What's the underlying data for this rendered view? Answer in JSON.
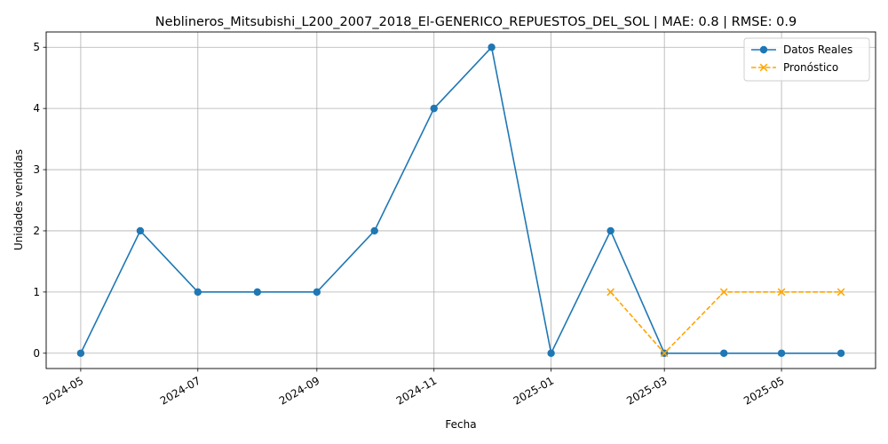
{
  "chart_data": {
    "type": "line",
    "title": "Neblineros_Mitsubishi_L200_2007_2018_El-GENERICO_REPUESTOS_DEL_SOL | MAE: 0.8 | RMSE: 0.9",
    "xlabel": "Fecha",
    "ylabel": "Unidades vendidas",
    "ylim": [
      -0.25,
      5.25
    ],
    "xlim": [
      "2024-04-13",
      "2025-06-19"
    ],
    "grid": true,
    "legend_position": "top-right",
    "x_ticks": [
      "2024-05",
      "2024-07",
      "2024-09",
      "2024-11",
      "2025-01",
      "2025-03",
      "2025-05"
    ],
    "y_ticks": [
      0,
      1,
      2,
      3,
      4,
      5
    ],
    "series": [
      {
        "name": "Datos Reales",
        "color": "#1f77b4",
        "style": "solid",
        "marker": "circle",
        "points": [
          {
            "x": "2024-05-01",
            "y": 0
          },
          {
            "x": "2024-06-01",
            "y": 2
          },
          {
            "x": "2024-07-01",
            "y": 1
          },
          {
            "x": "2024-08-01",
            "y": 1
          },
          {
            "x": "2024-09-01",
            "y": 1
          },
          {
            "x": "2024-10-01",
            "y": 2
          },
          {
            "x": "2024-11-01",
            "y": 4
          },
          {
            "x": "2024-12-01",
            "y": 5
          },
          {
            "x": "2025-01-01",
            "y": 0
          },
          {
            "x": "2025-02-01",
            "y": 2
          },
          {
            "x": "2025-03-01",
            "y": 0
          },
          {
            "x": "2025-04-01",
            "y": 0
          },
          {
            "x": "2025-05-01",
            "y": 0
          },
          {
            "x": "2025-06-01",
            "y": 0
          }
        ]
      },
      {
        "name": "Pronóstico",
        "color": "#ffa500",
        "style": "dashed",
        "marker": "x",
        "points": [
          {
            "x": "2025-02-01",
            "y": 1
          },
          {
            "x": "2025-03-01",
            "y": 0
          },
          {
            "x": "2025-04-01",
            "y": 1
          },
          {
            "x": "2025-05-01",
            "y": 1
          },
          {
            "x": "2025-06-01",
            "y": 1
          }
        ]
      }
    ]
  }
}
